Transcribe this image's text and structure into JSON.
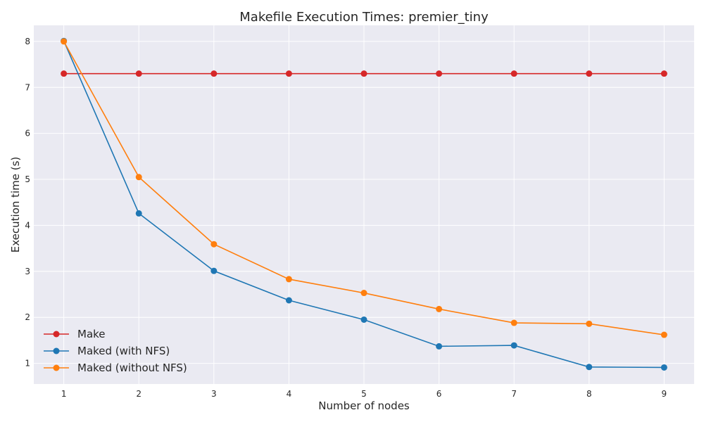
{
  "chart_data": {
    "type": "line",
    "title": "Makefile Execution Times: premier_tiny",
    "xlabel": "Number of nodes",
    "ylabel": "Execution time (s)",
    "x": [
      1,
      2,
      3,
      4,
      5,
      6,
      7,
      8,
      9
    ],
    "xticks": [
      "1",
      "2",
      "3",
      "4",
      "5",
      "6",
      "7",
      "8",
      "9"
    ],
    "yticks": [
      "1",
      "2",
      "3",
      "4",
      "5",
      "6",
      "7",
      "8"
    ],
    "xlim": [
      0.6,
      9.4
    ],
    "ylim": [
      0.55,
      8.35
    ],
    "grid": true,
    "legend_position": "lower-left",
    "series": [
      {
        "name": "Make",
        "color": "#d62728",
        "values": [
          7.3,
          7.3,
          7.3,
          7.3,
          7.3,
          7.3,
          7.3,
          7.3,
          7.3
        ]
      },
      {
        "name": "Maked (with NFS)",
        "color": "#1f77b4",
        "values": [
          8.01,
          4.26,
          3.01,
          2.37,
          1.95,
          1.37,
          1.39,
          0.92,
          0.91
        ]
      },
      {
        "name": "Maked (without NFS)",
        "color": "#ff7f0e",
        "values": [
          8.0,
          5.05,
          3.59,
          2.83,
          2.53,
          2.18,
          1.88,
          1.86,
          1.62
        ]
      }
    ]
  }
}
